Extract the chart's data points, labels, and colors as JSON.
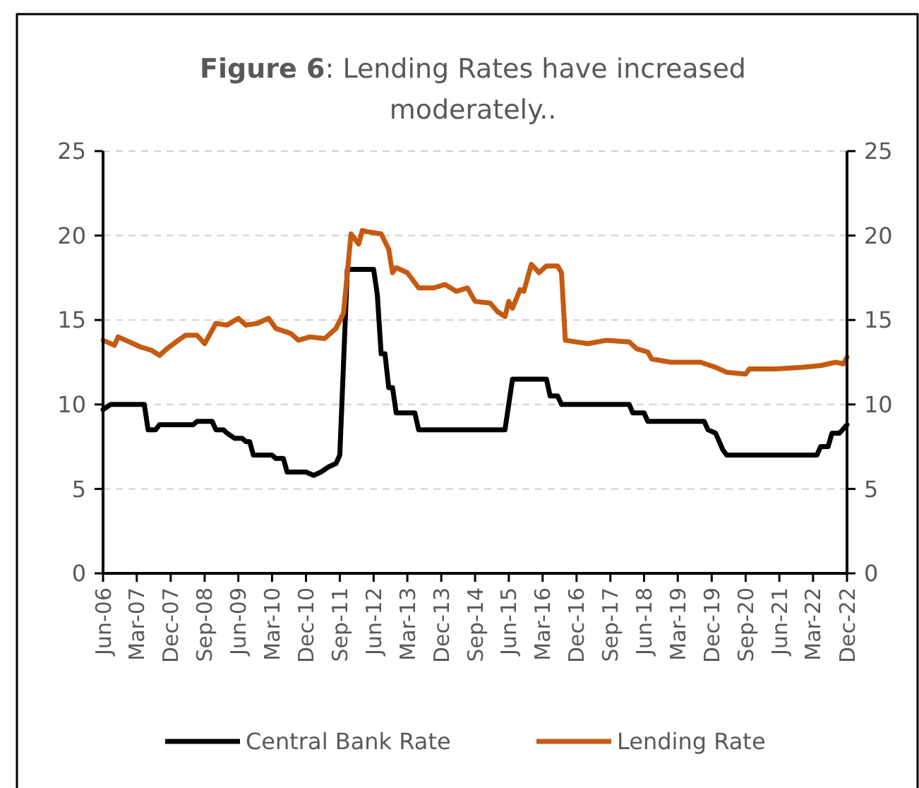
{
  "chart_data": {
    "type": "line",
    "title": "Figure 6: Lending Rates have increased moderately..",
    "xlim": [
      "2006-06",
      "2022-12"
    ],
    "xticks": [
      {
        "value": "2006-06",
        "label": "Jun-06"
      },
      {
        "value": "2007-03",
        "label": "Mar-07"
      },
      {
        "value": "2007-12",
        "label": "Dec-07"
      },
      {
        "value": "2008-09",
        "label": "Sep-08"
      },
      {
        "value": "2009-06",
        "label": "Jun-09"
      },
      {
        "value": "2010-03",
        "label": "Mar-10"
      },
      {
        "value": "2010-12",
        "label": "Dec-10"
      },
      {
        "value": "2011-09",
        "label": "Sep-11"
      },
      {
        "value": "2012-06",
        "label": "Jun-12"
      },
      {
        "value": "2013-03",
        "label": "Mar-13"
      },
      {
        "value": "2013-12",
        "label": "Dec-13"
      },
      {
        "value": "2014-09",
        "label": "Sep-14"
      },
      {
        "value": "2015-06",
        "label": "Jun-15"
      },
      {
        "value": "2016-03",
        "label": "Mar-16"
      },
      {
        "value": "2016-12",
        "label": "Dec-16"
      },
      {
        "value": "2017-09",
        "label": "Sep-17"
      },
      {
        "value": "2018-06",
        "label": "Jun-18"
      },
      {
        "value": "2019-03",
        "label": "Mar-19"
      },
      {
        "value": "2019-12",
        "label": "Dec-19"
      },
      {
        "value": "2020-09",
        "label": "Sep-20"
      },
      {
        "value": "2021-06",
        "label": "Jun-21"
      },
      {
        "value": "2022-03",
        "label": "Mar-22"
      },
      {
        "value": "2022-12",
        "label": "Dec-22"
      }
    ],
    "ylim": [
      0,
      25
    ],
    "yticks": [
      0,
      5,
      10,
      15,
      20,
      25
    ],
    "y2lim": [
      0,
      25
    ],
    "y2ticks": [
      0,
      5,
      10,
      15,
      20,
      25
    ],
    "grid": "y",
    "legend": "bottom",
    "line_style": "solid",
    "series": [
      {
        "name": "Central Bank Rate",
        "color": "#000000",
        "x": [
          "2006-06",
          "2006-08",
          "2007-05",
          "2007-06",
          "2007-08",
          "2007-09",
          "2008-06",
          "2008-07",
          "2008-11",
          "2008-12",
          "2009-02",
          "2009-03",
          "2009-05",
          "2009-07",
          "2009-08",
          "2009-09",
          "2009-10",
          "2010-03",
          "2010-04",
          "2010-06",
          "2010-07",
          "2010-12",
          "2011-02",
          "2011-04",
          "2011-06",
          "2011-08",
          "2011-09",
          "2011-11",
          "2012-06",
          "2012-07",
          "2012-08",
          "2012-09",
          "2012-10",
          "2012-11",
          "2012-12",
          "2013-05",
          "2013-06",
          "2015-05",
          "2015-07",
          "2016-04",
          "2016-05",
          "2016-07",
          "2016-08",
          "2018-02",
          "2018-03",
          "2018-06",
          "2018-07",
          "2019-10",
          "2019-11",
          "2020-01",
          "2020-03",
          "2020-04",
          "2022-04",
          "2022-05",
          "2022-07",
          "2022-08",
          "2022-10",
          "2022-12"
        ],
        "values": [
          9.7,
          10,
          10,
          8.5,
          8.5,
          8.8,
          8.8,
          9,
          9,
          8.5,
          8.5,
          8.3,
          8,
          8,
          7.8,
          7.8,
          7,
          7,
          6.8,
          6.8,
          6,
          6,
          5.8,
          6,
          6.3,
          6.5,
          7,
          18,
          18,
          16.5,
          13,
          13,
          11,
          11,
          9.5,
          9.5,
          8.5,
          8.5,
          11.5,
          11.5,
          10.5,
          10.5,
          10,
          10,
          9.5,
          9.5,
          9,
          9,
          8.5,
          8.3,
          7.3,
          7,
          7,
          7.5,
          7.5,
          8.3,
          8.3,
          8.8
        ]
      },
      {
        "name": "Lending Rate",
        "color": "#c55a11",
        "x": [
          "2006-06",
          "2006-09",
          "2006-10",
          "2007-01",
          "2007-04",
          "2007-07",
          "2007-09",
          "2007-11",
          "2008-02",
          "2008-04",
          "2008-07",
          "2008-09",
          "2008-12",
          "2009-03",
          "2009-06",
          "2009-08",
          "2009-11",
          "2010-02",
          "2010-04",
          "2010-08",
          "2010-10",
          "2011-01",
          "2011-05",
          "2011-08",
          "2011-10",
          "2011-12",
          "2012-02",
          "2012-03",
          "2012-05",
          "2012-08",
          "2012-10",
          "2012-11",
          "2012-12",
          "2013-03",
          "2013-06",
          "2013-10",
          "2014-01",
          "2014-04",
          "2014-07",
          "2014-09",
          "2015-01",
          "2015-03",
          "2015-05",
          "2015-06",
          "2015-07",
          "2015-09",
          "2015-10",
          "2015-12",
          "2016-02",
          "2016-04",
          "2016-07",
          "2016-08",
          "2016-09",
          "2017-03",
          "2017-08",
          "2018-02",
          "2018-04",
          "2018-07",
          "2018-08",
          "2019-01",
          "2019-06",
          "2019-09",
          "2020-01",
          "2020-04",
          "2020-09",
          "2020-10",
          "2021-05",
          "2021-12",
          "2022-05",
          "2022-09",
          "2022-11",
          "2022-12"
        ],
        "values": [
          13.8,
          13.5,
          14,
          13.7,
          13.4,
          13.2,
          12.9,
          13.3,
          13.8,
          14.1,
          14.1,
          13.6,
          14.8,
          14.7,
          15.1,
          14.7,
          14.8,
          15.1,
          14.5,
          14.2,
          13.8,
          14,
          13.9,
          14.5,
          15.4,
          20.1,
          19.5,
          20.3,
          20.2,
          20.1,
          19.2,
          17.8,
          18.1,
          17.8,
          16.9,
          16.9,
          17.1,
          16.7,
          16.9,
          16.1,
          16,
          15.5,
          15.2,
          16.1,
          15.7,
          16.8,
          16.7,
          18.3,
          17.8,
          18.2,
          18.2,
          17.8,
          13.8,
          13.6,
          13.8,
          13.7,
          13.3,
          13.1,
          12.7,
          12.5,
          12.5,
          12.5,
          12.2,
          11.9,
          11.8,
          12.1,
          12.1,
          12.2,
          12.3,
          12.5,
          12.4,
          12.8
        ]
      }
    ]
  }
}
